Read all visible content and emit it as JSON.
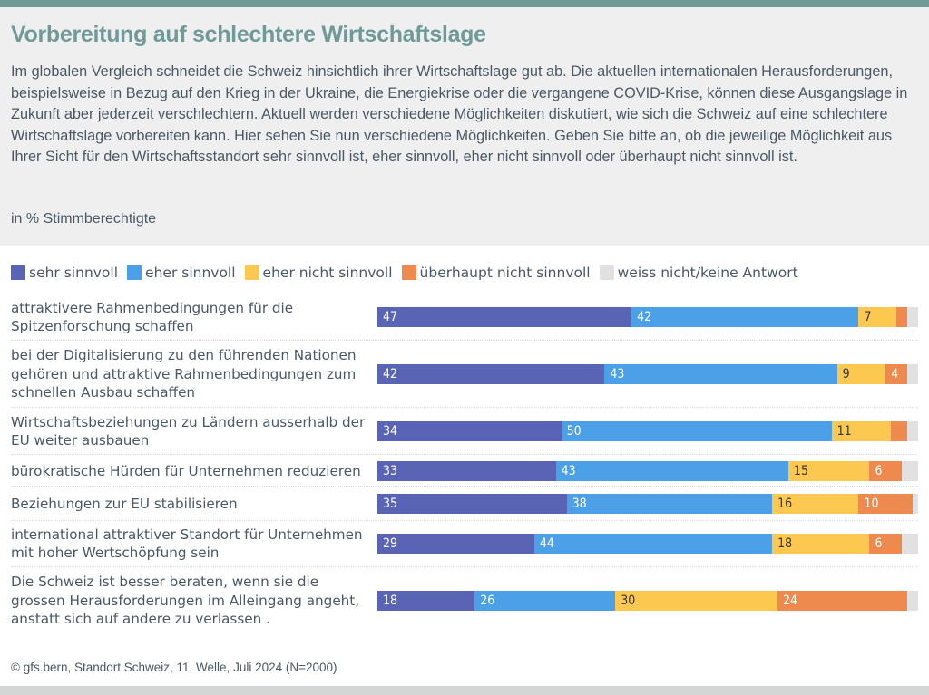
{
  "header": {
    "title": "Vorbereitung auf schlechtere Wirtschaftslage",
    "intro": "Im globalen Vergleich schneidet die Schweiz hinsichtlich ihrer Wirtschaftslage gut ab. Die aktuellen internationalen Herausforderungen, beispielsweise in Bezug auf den Krieg in der Ukraine, die Energiekrise oder die vergangene COVID-Krise, können diese Ausgangslage in Zukunft aber jederzeit verschlechtern. Aktuell werden verschiedene Möglichkeiten diskutiert, wie sich die Schweiz auf eine schlechtere Wirtschaftslage vorbereiten kann. Hier sehen Sie nun verschiedene Möglichkeiten. Geben Sie bitte an, ob die jeweilige Möglichkeit aus Ihrer Sicht für den Wirtschaftsstandort sehr sinnvoll ist, eher sinnvoll, eher nicht sinnvoll oder überhaupt nicht sinnvoll ist.",
    "unit": "in % Stimmberechtigte"
  },
  "footer": {
    "source": "© gfs.bern, Standort Schweiz, 11. Welle, Juli 2024 (N=2000)"
  },
  "chart_data": {
    "type": "bar",
    "orientation": "horizontal",
    "stacked": true,
    "title": "Vorbereitung auf schlechtere Wirtschaftslage",
    "subtitle": "in % Stimmberechtigte",
    "xlabel": "",
    "ylabel": "",
    "xlim": [
      0,
      100
    ],
    "grid": false,
    "legend_position": "top",
    "categories": [
      "attraktivere Rahmenbedingungen für die Spitzenforschung schaffen",
      "bei der Digitalisierung zu den führenden Nationen gehören und attraktive Rahmenbedingungen zum schnellen Ausbau schaffen",
      "Wirtschaftsbeziehungen zu Ländern ausserhalb der EU weiter ausbauen",
      "bürokratische Hürden für Unternehmen reduzieren",
      "Beziehungen zur EU stabilisieren",
      "international attraktiver Standort für Unternehmen mit hoher Wertschöpfung sein",
      "Die Schweiz ist besser beraten, wenn sie die grossen Herausforderungen im Alleingang angeht, anstatt sich auf andere zu verlassen ."
    ],
    "category_lines": [
      [
        "attraktivere Rahmenbedingungen für die",
        "Spitzenforschung schaffen"
      ],
      [
        "bei der Digitalisierung zu den führenden Nationen",
        "gehören und attraktive Rahmenbedingungen zum",
        "schnellen Ausbau schaffen"
      ],
      [
        "Wirtschaftsbeziehungen zu Ländern ausserhalb der",
        "EU weiter ausbauen"
      ],
      [
        "bürokratische Hürden für Unternehmen reduzieren"
      ],
      [
        "Beziehungen zur EU stabilisieren"
      ],
      [
        "international attraktiver Standort für Unternehmen",
        "mit hoher Wertschöpfung sein"
      ],
      [
        "Die Schweiz ist besser beraten, wenn sie die",
        "grossen Herausforderungen im Alleingang angeht,",
        "anstatt sich auf andere zu verlassen ."
      ]
    ],
    "series": [
      {
        "name": "sehr sinnvoll",
        "color": "#5a64b4",
        "label_color": "#ffffff",
        "values": [
          47,
          42,
          34,
          33,
          35,
          29,
          18
        ],
        "show_labels": [
          true,
          true,
          true,
          true,
          true,
          true,
          true
        ]
      },
      {
        "name": "eher sinnvoll",
        "color": "#4ba0e8",
        "label_color": "#ffffff",
        "values": [
          42,
          43,
          50,
          43,
          38,
          44,
          26
        ],
        "show_labels": [
          true,
          true,
          true,
          true,
          true,
          true,
          true
        ]
      },
      {
        "name": "eher nicht sinnvoll",
        "color": "#fdc850",
        "label_color": "#333333",
        "values": [
          7,
          9,
          11,
          15,
          16,
          18,
          30
        ],
        "show_labels": [
          true,
          true,
          true,
          true,
          true,
          true,
          true
        ]
      },
      {
        "name": "überhaupt nicht sinnvoll",
        "color": "#ee8a4e",
        "label_color": "#ffffff",
        "values": [
          2,
          4,
          3,
          6,
          10,
          6,
          24
        ],
        "show_labels": [
          false,
          true,
          false,
          true,
          true,
          true,
          true
        ]
      },
      {
        "name": "weiss nicht/keine Antwort",
        "color": "#e1e1e1",
        "label_color": "#333333",
        "values": [
          2,
          2,
          2,
          3,
          1,
          3,
          2
        ],
        "show_labels": [
          false,
          false,
          false,
          false,
          false,
          false,
          false
        ]
      }
    ]
  }
}
